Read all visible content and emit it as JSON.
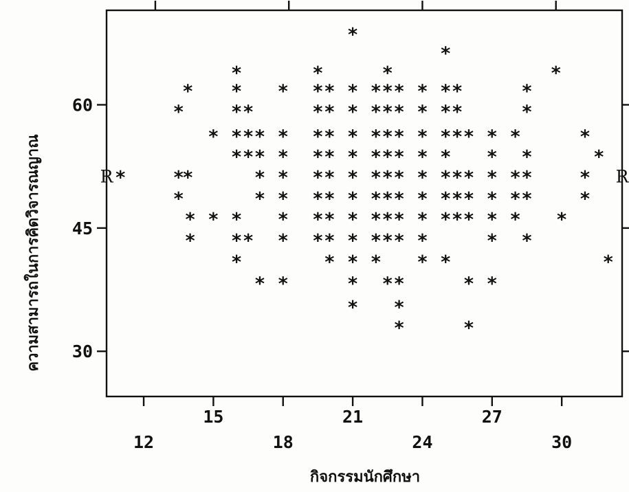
{
  "chart_data": {
    "type": "scatter",
    "title": "",
    "xlabel": "กิจกรรมนักศึกษา",
    "ylabel": "ความสามารถในการคิดวิจารณญาณ",
    "xlim": [
      10.4,
      32.6
    ],
    "ylim": [
      24.5,
      71.5
    ],
    "x_ticks": [
      12,
      15,
      18,
      21,
      24,
      27,
      30
    ],
    "y_ticks": [
      30,
      45,
      60
    ],
    "x_tick_labels": [
      "12",
      "15",
      "18",
      "21",
      "24",
      "27",
      "30"
    ],
    "y_tick_labels": [
      "30",
      "45",
      "60"
    ],
    "x_minor_ticks": [
      12.5,
      18.25,
      24,
      29.75
    ],
    "marker": "*",
    "reference_mark": "R",
    "reference_y": 51.3,
    "grid": false,
    "legend": "none",
    "points": [
      [
        21.0,
        68.7
      ],
      [
        25.0,
        66.4
      ],
      [
        16.0,
        64.0
      ],
      [
        19.5,
        64.0
      ],
      [
        22.5,
        64.0
      ],
      [
        29.75,
        64.0
      ],
      [
        13.9,
        61.8
      ],
      [
        16.0,
        61.8
      ],
      [
        18.0,
        61.8
      ],
      [
        19.5,
        61.8
      ],
      [
        20.0,
        61.8
      ],
      [
        21.0,
        61.8
      ],
      [
        22.0,
        61.8
      ],
      [
        22.5,
        61.8
      ],
      [
        23.0,
        61.8
      ],
      [
        24.0,
        61.8
      ],
      [
        25.0,
        61.8
      ],
      [
        25.5,
        61.8
      ],
      [
        28.5,
        61.8
      ],
      [
        13.5,
        59.3
      ],
      [
        16.0,
        59.3
      ],
      [
        16.5,
        59.3
      ],
      [
        19.5,
        59.3
      ],
      [
        20.0,
        59.3
      ],
      [
        21.0,
        59.3
      ],
      [
        22.0,
        59.3
      ],
      [
        22.5,
        59.3
      ],
      [
        23.0,
        59.3
      ],
      [
        24.0,
        59.3
      ],
      [
        25.0,
        59.3
      ],
      [
        25.5,
        59.3
      ],
      [
        28.5,
        59.3
      ],
      [
        15.0,
        56.3
      ],
      [
        16.0,
        56.3
      ],
      [
        16.5,
        56.3
      ],
      [
        17.0,
        56.3
      ],
      [
        18.0,
        56.3
      ],
      [
        19.5,
        56.3
      ],
      [
        20.0,
        56.3
      ],
      [
        21.0,
        56.3
      ],
      [
        22.0,
        56.3
      ],
      [
        22.5,
        56.3
      ],
      [
        23.0,
        56.3
      ],
      [
        24.0,
        56.3
      ],
      [
        25.0,
        56.3
      ],
      [
        25.5,
        56.3
      ],
      [
        26.0,
        56.3
      ],
      [
        27.0,
        56.3
      ],
      [
        28.0,
        56.3
      ],
      [
        31.0,
        56.3
      ],
      [
        16.0,
        53.8
      ],
      [
        16.5,
        53.8
      ],
      [
        17.0,
        53.8
      ],
      [
        18.0,
        53.8
      ],
      [
        19.5,
        53.8
      ],
      [
        20.0,
        53.8
      ],
      [
        21.0,
        53.8
      ],
      [
        22.0,
        53.8
      ],
      [
        22.5,
        53.8
      ],
      [
        23.0,
        53.8
      ],
      [
        24.0,
        53.8
      ],
      [
        25.0,
        53.8
      ],
      [
        27.0,
        53.8
      ],
      [
        28.5,
        53.8
      ],
      [
        31.6,
        53.8
      ],
      [
        11.0,
        51.3
      ],
      [
        13.5,
        51.3
      ],
      [
        13.9,
        51.3
      ],
      [
        17.0,
        51.3
      ],
      [
        18.0,
        51.3
      ],
      [
        19.5,
        51.3
      ],
      [
        20.0,
        51.3
      ],
      [
        21.0,
        51.3
      ],
      [
        22.0,
        51.3
      ],
      [
        22.5,
        51.3
      ],
      [
        23.0,
        51.3
      ],
      [
        24.0,
        51.3
      ],
      [
        25.0,
        51.3
      ],
      [
        25.5,
        51.3
      ],
      [
        26.0,
        51.3
      ],
      [
        27.0,
        51.3
      ],
      [
        28.0,
        51.3
      ],
      [
        28.5,
        51.3
      ],
      [
        31.0,
        51.3
      ],
      [
        13.5,
        48.7
      ],
      [
        17.0,
        48.7
      ],
      [
        18.0,
        48.7
      ],
      [
        19.5,
        48.7
      ],
      [
        20.0,
        48.7
      ],
      [
        21.0,
        48.7
      ],
      [
        22.0,
        48.7
      ],
      [
        22.5,
        48.7
      ],
      [
        23.0,
        48.7
      ],
      [
        24.0,
        48.7
      ],
      [
        25.0,
        48.7
      ],
      [
        25.5,
        48.7
      ],
      [
        26.0,
        48.7
      ],
      [
        27.0,
        48.7
      ],
      [
        28.0,
        48.7
      ],
      [
        28.5,
        48.7
      ],
      [
        31.0,
        48.7
      ],
      [
        14.0,
        46.2
      ],
      [
        15.0,
        46.2
      ],
      [
        16.0,
        46.2
      ],
      [
        18.0,
        46.2
      ],
      [
        19.5,
        46.2
      ],
      [
        20.0,
        46.2
      ],
      [
        21.0,
        46.2
      ],
      [
        22.0,
        46.2
      ],
      [
        22.5,
        46.2
      ],
      [
        23.0,
        46.2
      ],
      [
        24.0,
        46.2
      ],
      [
        25.0,
        46.2
      ],
      [
        25.5,
        46.2
      ],
      [
        26.0,
        46.2
      ],
      [
        27.0,
        46.2
      ],
      [
        28.0,
        46.2
      ],
      [
        30.0,
        46.2
      ],
      [
        14.0,
        43.6
      ],
      [
        16.0,
        43.6
      ],
      [
        16.5,
        43.6
      ],
      [
        18.0,
        43.6
      ],
      [
        19.5,
        43.6
      ],
      [
        20.0,
        43.6
      ],
      [
        21.0,
        43.6
      ],
      [
        22.0,
        43.6
      ],
      [
        22.5,
        43.6
      ],
      [
        23.0,
        43.6
      ],
      [
        24.0,
        43.6
      ],
      [
        27.0,
        43.6
      ],
      [
        28.5,
        43.6
      ],
      [
        16.0,
        41.0
      ],
      [
        20.0,
        41.0
      ],
      [
        21.0,
        41.0
      ],
      [
        22.0,
        41.0
      ],
      [
        24.0,
        41.0
      ],
      [
        25.0,
        41.0
      ],
      [
        32.0,
        41.0
      ],
      [
        17.0,
        38.4
      ],
      [
        18.0,
        38.4
      ],
      [
        21.0,
        38.4
      ],
      [
        22.5,
        38.4
      ],
      [
        23.0,
        38.4
      ],
      [
        26.0,
        38.4
      ],
      [
        27.0,
        38.4
      ],
      [
        21.0,
        35.5
      ],
      [
        23.0,
        35.5
      ],
      [
        23.0,
        33.0
      ],
      [
        26.0,
        33.0
      ]
    ]
  }
}
